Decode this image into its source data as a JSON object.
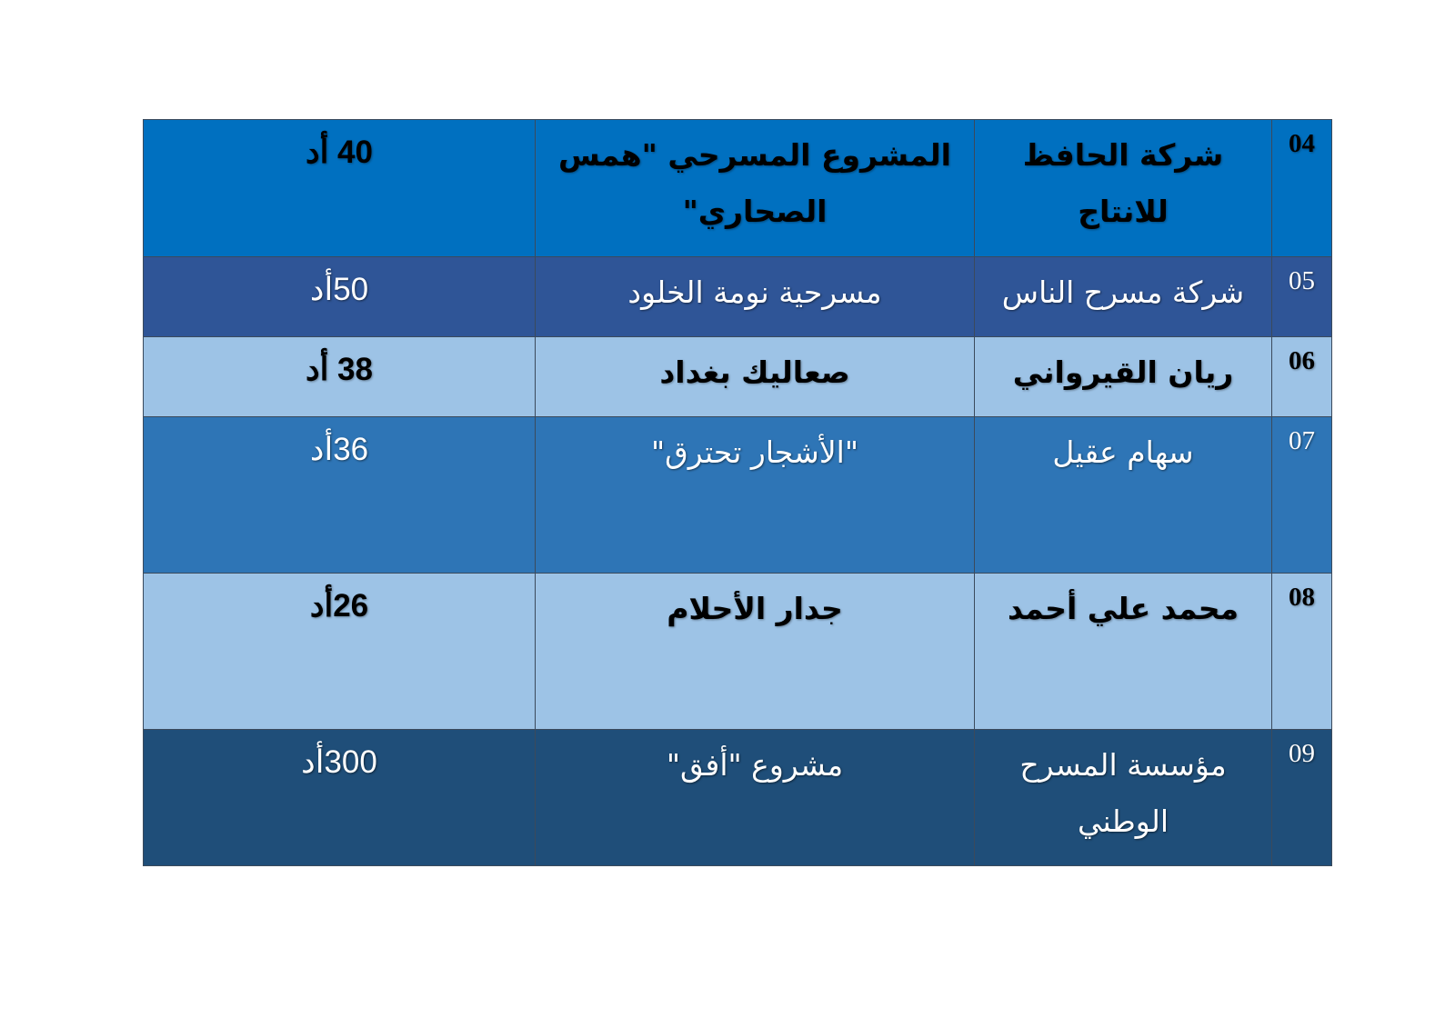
{
  "table": {
    "rows": [
      {
        "num": "04",
        "name": "شركة الحافظ للانتاج",
        "project": "المشروع المسرحي \"همس الصحاري\"",
        "amount": "40 أد",
        "bg": "#0070c0",
        "theme": "light"
      },
      {
        "num": "05",
        "name": "شركة مسرح الناس",
        "project": "مسرحية نومة الخلود",
        "amount": "50أد",
        "bg": "#2f5597",
        "theme": "dark"
      },
      {
        "num": "06",
        "name": "ريان القيرواني",
        "project": "صعاليك بغداد",
        "amount": "38 أد",
        "bg": "#9dc3e6",
        "theme": "light"
      },
      {
        "num": "07",
        "name": "سهام عقيل",
        "project": "\"الأشجار تحترق\"",
        "amount": "36أد",
        "bg": "#2e75b6",
        "theme": "dark"
      },
      {
        "num": "08",
        "name": "محمد علي أحمد",
        "project": "جدار الأحلام",
        "amount": "26أد",
        "bg": "#9dc3e6",
        "theme": "light"
      },
      {
        "num": "09",
        "name": "مؤسسة المسرح الوطني",
        "project": "مشروع \"أفق\"",
        "amount": "300أد",
        "bg": "#1f4e79",
        "theme": "dark"
      }
    ]
  }
}
